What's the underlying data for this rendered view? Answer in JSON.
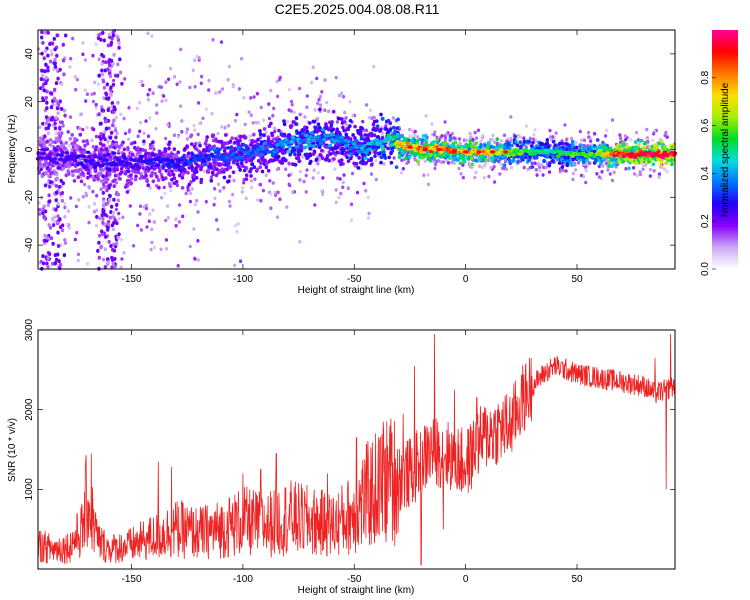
{
  "title": "C2E5.2025.004.08.08.R11",
  "chart_data": [
    {
      "type": "heatmap",
      "xlabel": "Height of straight line (km)",
      "ylabel": "Frequency (Hz)",
      "xlim": [
        -192,
        94
      ],
      "ylim": [
        -50,
        50
      ],
      "xticks": [
        -150,
        -100,
        -50,
        0,
        50
      ],
      "yticks": [
        -40,
        -20,
        0,
        20,
        40
      ],
      "colorbar": {
        "label": "Normalized spectral amplitude",
        "range": [
          0.0,
          1.0
        ],
        "ticks": [
          0.0,
          0.2,
          0.4,
          0.6,
          0.8
        ],
        "colors": [
          "#ffffff",
          "#c9a8f2",
          "#8a00ff",
          "#2200ff",
          "#0077ff",
          "#00dddd",
          "#00dd22",
          "#a8ee00",
          "#ffdd00",
          "#ff7700",
          "#ff0000",
          "#ff0099"
        ]
      },
      "ridge": {
        "x": [
          -190,
          -175,
          -160,
          -150,
          -140,
          -130,
          -120,
          -110,
          -100,
          -90,
          -80,
          -70,
          -60,
          -55,
          -50,
          -45,
          -40,
          -35,
          -32,
          -30,
          -25,
          -20,
          -10,
          0,
          10,
          20,
          30,
          40,
          50,
          60,
          70,
          80,
          90
        ],
        "freq": [
          -3,
          -4,
          -5,
          -6,
          -5,
          -6,
          -4,
          -3,
          -2,
          0,
          2,
          4,
          5,
          3,
          1,
          0,
          3,
          4,
          5,
          2,
          1,
          0,
          0,
          -1,
          -1,
          -1,
          -1,
          -1,
          -2,
          -2,
          -2,
          -2,
          -2
        ],
        "amplitude": [
          0.22,
          0.24,
          0.25,
          0.25,
          0.28,
          0.28,
          0.3,
          0.32,
          0.33,
          0.34,
          0.4,
          0.38,
          0.37,
          0.36,
          0.38,
          0.4,
          0.42,
          0.45,
          0.55,
          0.7,
          0.75,
          0.78,
          0.8,
          0.78,
          0.75,
          0.6,
          0.5,
          0.5,
          0.55,
          0.6,
          0.9,
          0.92,
          0.95
        ]
      },
      "burst_x": [
        -25,
        -18,
        -12,
        -5,
        0,
        6,
        12,
        18,
        75,
        80,
        85,
        90
      ]
    },
    {
      "type": "line",
      "xlabel": "Height of straight line (km)",
      "ylabel": "SNR (10 * v/v)",
      "xlim": [
        -192,
        94
      ],
      "ylim": [
        0,
        3000
      ],
      "xticks": [
        -150,
        -100,
        -50,
        0,
        50
      ],
      "yticks": [
        1000,
        2000,
        3000
      ],
      "color": "#ee2222",
      "series": [
        {
          "x": [
            -192,
            -185,
            -178,
            -172,
            -170,
            -165,
            -160,
            -150,
            -140,
            -130,
            -120,
            -110,
            -100,
            -90,
            -80,
            -70,
            -60,
            -50,
            -45,
            -40,
            -35,
            -30,
            -25,
            -20,
            -15,
            -10,
            -5,
            0,
            5,
            10,
            15,
            20,
            25,
            30,
            35,
            40,
            50,
            60,
            70,
            80,
            85,
            90,
            94
          ],
          "y": [
            300,
            250,
            280,
            500,
            900,
            350,
            250,
            300,
            400,
            500,
            450,
            500,
            600,
            550,
            650,
            600,
            550,
            700,
            900,
            1000,
            1100,
            1150,
            1200,
            1350,
            1500,
            1450,
            1400,
            1300,
            1550,
            1700,
            1750,
            1800,
            2100,
            2300,
            2450,
            2550,
            2450,
            2400,
            2350,
            2300,
            2200,
            2250,
            2300
          ]
        }
      ],
      "spikes": [
        {
          "x": -168,
          "y": 1450
        },
        {
          "x": -138,
          "y": 1350
        },
        {
          "x": -132,
          "y": 1280
        },
        {
          "x": -100,
          "y": 1200
        },
        {
          "x": -92,
          "y": 1250
        },
        {
          "x": -85,
          "y": 1450
        },
        {
          "x": -62,
          "y": 1200
        },
        {
          "x": -49,
          "y": 1650
        },
        {
          "x": -37,
          "y": 1850
        },
        {
          "x": -34,
          "y": 1800
        },
        {
          "x": -28,
          "y": 1950
        },
        {
          "x": -23,
          "y": 2550
        },
        {
          "x": -14,
          "y": 2950
        },
        {
          "x": -5,
          "y": 2250
        },
        {
          "x": 5,
          "y": 2150
        },
        {
          "x": 85,
          "y": 2650
        },
        {
          "x": 92,
          "y": 2950
        }
      ],
      "dips": [
        {
          "x": -20,
          "y": 50
        },
        {
          "x": -10,
          "y": 500
        },
        {
          "x": 90,
          "y": 1000
        }
      ]
    }
  ]
}
